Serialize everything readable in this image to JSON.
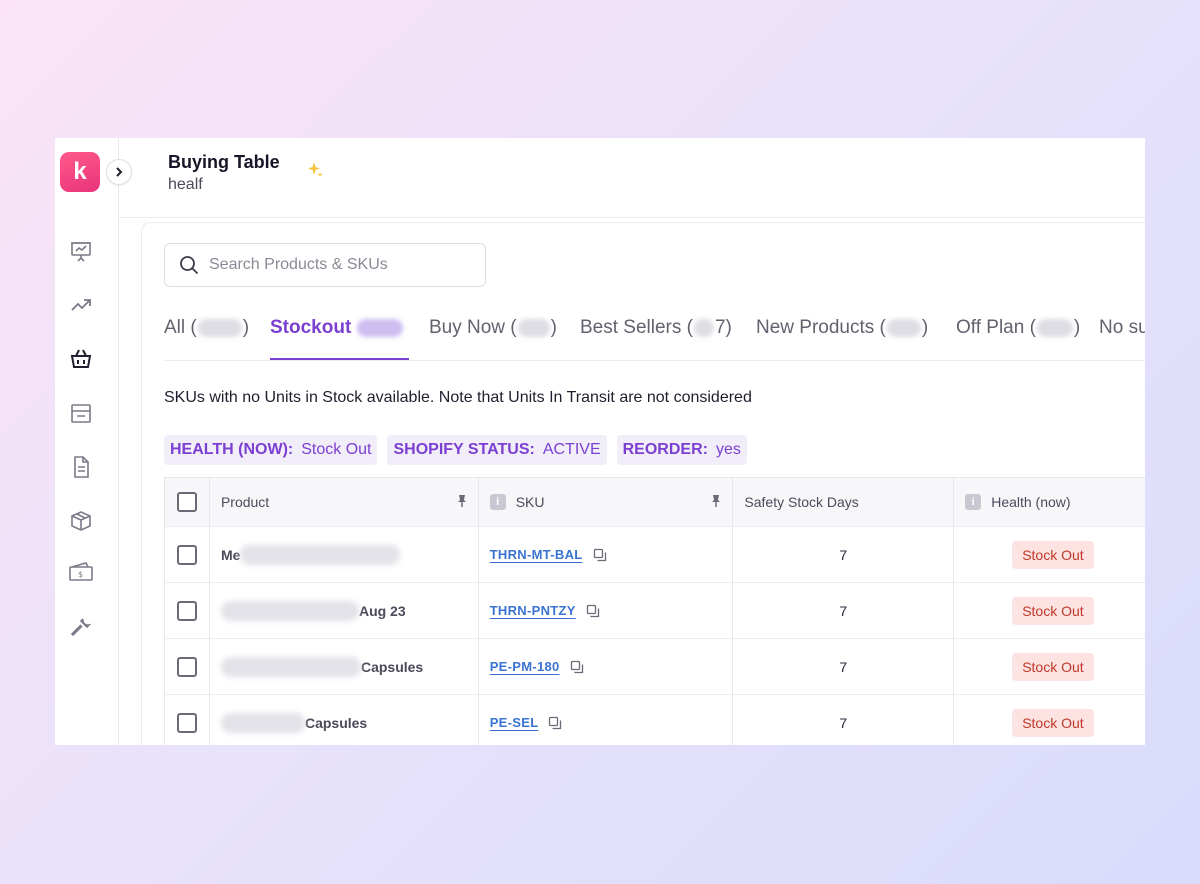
{
  "header": {
    "title": "Buying Table",
    "subtitle": "healf"
  },
  "logo": {
    "letter": "k"
  },
  "search": {
    "placeholder": "Search Products & SKUs"
  },
  "tabs": [
    {
      "label": "All (",
      "suffix": ")"
    },
    {
      "label": "Stockout",
      "suffix": ""
    },
    {
      "label": "Buy Now (",
      "suffix": ")"
    },
    {
      "label": "Best Sellers (",
      "suffix": "7)"
    },
    {
      "label": "New Products (",
      "suffix": ")"
    },
    {
      "label": "Off Plan (",
      "suffix": ")"
    },
    {
      "label": "No su",
      "suffix": ""
    }
  ],
  "description": "SKUs with no Units in Stock available. Note that Units In Transit are not considered",
  "filters": [
    {
      "key": "HEALTH (NOW):",
      "value": "Stock Out"
    },
    {
      "key": "SHOPIFY STATUS:",
      "value": "ACTIVE"
    },
    {
      "key": "REORDER:",
      "value": "yes"
    }
  ],
  "table": {
    "columns": {
      "product": "Product",
      "sku": "SKU",
      "safety": "Safety Stock Days",
      "health": "Health (now)"
    },
    "rows": [
      {
        "product_visible": "Me",
        "sku": "THRN-MT-BAL",
        "safety": "7",
        "health": "Stock Out"
      },
      {
        "product_visible": "Aug 23",
        "sku": "THRN-PNTZY",
        "safety": "7",
        "health": "Stock Out"
      },
      {
        "product_visible": "Capsules",
        "sku": "PE-PM-180",
        "safety": "7",
        "health": "Stock Out"
      },
      {
        "product_visible": "Capsules",
        "sku": "PE-SEL",
        "safety": "7",
        "health": "Stock Out"
      }
    ]
  },
  "colors": {
    "accent": "#7b3fd1",
    "brand": "#e8337a",
    "link": "#3a74d0",
    "stockout_bg": "#fde2e2",
    "stockout_text": "#c0392b"
  }
}
